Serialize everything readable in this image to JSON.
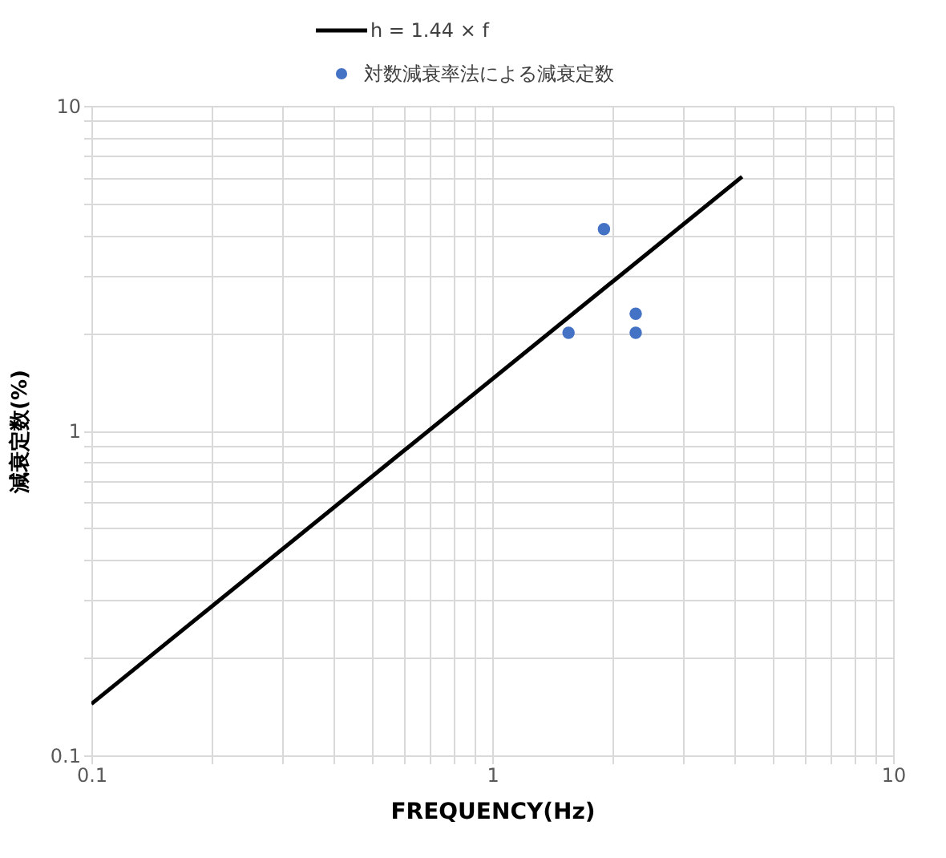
{
  "chart_data": {
    "type": "scatter",
    "xlabel": "FREQUENCY(Hz)",
    "ylabel": "減衰定数(%)",
    "log": "xy",
    "grid": true,
    "legend": "top",
    "xlim": [
      0.1,
      10
    ],
    "ylim": [
      0.1,
      10
    ],
    "xticks": [
      0.1,
      {
        "value": 0.2,
        "label": null
      },
      {
        "value": 0.3,
        "label": null
      },
      {
        "value": 0.4,
        "label": null
      },
      {
        "value": 0.5,
        "label": null
      },
      {
        "value": 0.6,
        "label": null
      },
      {
        "value": 0.7,
        "label": null
      },
      {
        "value": 0.8,
        "label": null
      },
      {
        "value": 0.9,
        "label": null
      },
      1,
      {
        "value": 2,
        "label": null
      },
      {
        "value": 3,
        "label": null
      },
      {
        "value": 4,
        "label": null
      },
      {
        "value": 5,
        "label": null
      },
      {
        "value": 6,
        "label": null
      },
      {
        "value": 7,
        "label": null
      },
      {
        "value": 8,
        "label": null
      },
      {
        "value": 9,
        "label": null
      },
      10
    ],
    "yticks": [
      0.1,
      {
        "value": 0.2,
        "label": null
      },
      {
        "value": 0.3,
        "label": null
      },
      {
        "value": 0.4,
        "label": null
      },
      {
        "value": 0.5,
        "label": null
      },
      {
        "value": 0.6,
        "label": null
      },
      {
        "value": 0.7,
        "label": null
      },
      {
        "value": 0.8,
        "label": null
      },
      {
        "value": 0.9,
        "label": null
      },
      1,
      {
        "value": 2,
        "label": null
      },
      {
        "value": 3,
        "label": null
      },
      {
        "value": 4,
        "label": null
      },
      {
        "value": 5,
        "label": null
      },
      {
        "value": 6,
        "label": null
      },
      {
        "value": 7,
        "label": null
      },
      {
        "value": 8,
        "label": null
      },
      {
        "value": 9,
        "label": null
      },
      10
    ],
    "series": [
      {
        "name": "h = 1.44 × f",
        "type": "line",
        "color": "#000000",
        "line_style": "solid",
        "x": [
          0.1,
          4.2
        ],
        "values": [
          0.144,
          6.05
        ]
      },
      {
        "name": "対数減衰率法による減衰定数",
        "color": "#4472c4",
        "marker": "circle",
        "x": [
          1.55,
          1.9,
          2.28,
          2.28
        ],
        "values": [
          2.0,
          4.17,
          2.29,
          2.0
        ]
      }
    ]
  }
}
